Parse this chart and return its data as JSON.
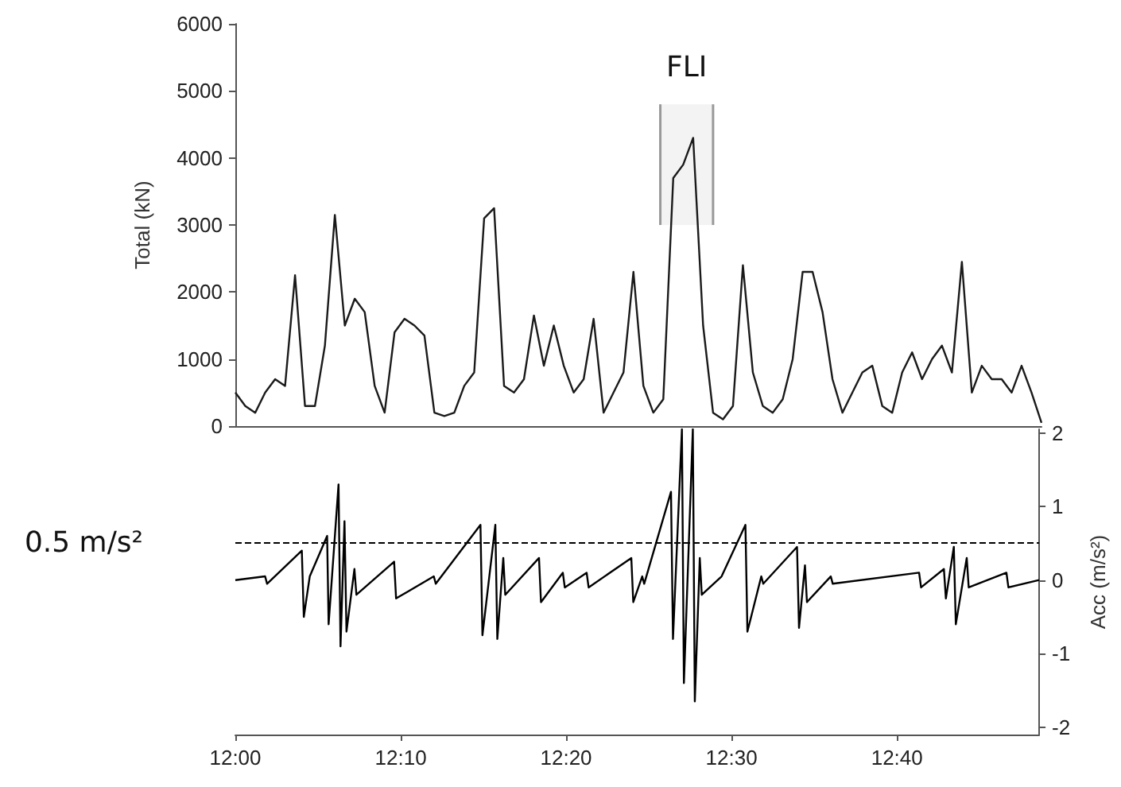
{
  "chart_data": [
    {
      "type": "line",
      "ylabel": "Total (kN)",
      "x": [
        12,
        12.01,
        12.02,
        12.03,
        12.04,
        12.05,
        12.06,
        12.07,
        12.08,
        12.09,
        12.1,
        12.11,
        12.12,
        12.13,
        12.14,
        12.15,
        12.16,
        12.17,
        12.18,
        12.19,
        12.2,
        12.21,
        12.22,
        12.23,
        12.24,
        12.25,
        12.26,
        12.27,
        12.28,
        12.29,
        12.3,
        12.31,
        12.32,
        12.33,
        12.34,
        12.35,
        12.36,
        12.37,
        12.38,
        12.39,
        12.4,
        12.41,
        12.42,
        12.43,
        12.44,
        12.45,
        12.46,
        12.47,
        12.48,
        12.49,
        12.5,
        12.51,
        12.52,
        12.53,
        12.54,
        12.55,
        12.56,
        12.57,
        12.58,
        12.59,
        12.6,
        12.61,
        12.62,
        12.63,
        12.64,
        12.65,
        12.66,
        12.67,
        12.68,
        12.69,
        12.7,
        12.71,
        12.72,
        12.73,
        12.74,
        12.75,
        12.76,
        12.77,
        12.78,
        12.79,
        12.8,
        12.81
      ],
      "series": [
        {
          "color": "#1a1a1a",
          "values": [
            500,
            300,
            200,
            500,
            700,
            600,
            2250,
            300,
            300,
            1200,
            3150,
            1500,
            1900,
            1700,
            600,
            200,
            1400,
            1600,
            1500,
            1350,
            200,
            150,
            200,
            600,
            800,
            3100,
            3250,
            600,
            500,
            700,
            1650,
            900,
            1500,
            900,
            500,
            700,
            1600,
            200,
            500,
            800,
            2300,
            600,
            200,
            400,
            3700,
            3900,
            4300,
            1500,
            200,
            100,
            300,
            2400,
            800,
            300,
            200,
            400,
            1000,
            2300,
            2300,
            1700,
            700,
            200,
            500,
            800,
            900,
            300,
            200,
            800,
            1100,
            700,
            1000,
            1200,
            800,
            2450,
            500,
            900,
            700,
            700,
            500,
            900,
            500,
            50
          ]
        }
      ],
      "xlim": [
        12,
        12.81
      ],
      "ylim": [
        0,
        6000
      ],
      "yticks": [
        0,
        1000,
        2000,
        3000,
        4000,
        5000,
        6000
      ],
      "bands": [
        {
          "axis": "x",
          "from": 12.427,
          "to": 12.48,
          "label": "FLI",
          "color": "#999999"
        }
      ],
      "tick_labels": "y",
      "grid": false,
      "marker": "none",
      "line_style": "solid"
    },
    {
      "type": "line",
      "y2label": "Acc (m/s²)",
      "x": [
        12,
        12.03,
        12.032,
        12.067,
        12.069,
        12.075,
        12.0925,
        12.094,
        12.104,
        12.106,
        12.11,
        12.112,
        12.12,
        12.122,
        12.16,
        12.162,
        12.2,
        12.202,
        12.247,
        12.249,
        12.262,
        12.264,
        12.27,
        12.272,
        12.306,
        12.308,
        12.33,
        12.332,
        12.354,
        12.356,
        12.399,
        12.401,
        12.41,
        12.412,
        12.439,
        12.441,
        12.45,
        12.452,
        12.461,
        12.463,
        12.468,
        12.47,
        12.49,
        12.514,
        12.516,
        12.53,
        12.532,
        12.566,
        12.568,
        12.574,
        12.576,
        12.6,
        12.602,
        12.689,
        12.691,
        12.714,
        12.716,
        12.724,
        12.726,
        12.737,
        12.739,
        12.777,
        12.779,
        12.81
      ],
      "series": [
        {
          "color": "#000000",
          "axis": "y2",
          "values": [
            0,
            0.05,
            -0.05,
            0.4,
            -0.5,
            0.05,
            0.6,
            -0.6,
            1.3,
            -0.9,
            0.8,
            -0.7,
            0.15,
            -0.2,
            0.25,
            -0.25,
            0.05,
            -0.05,
            0.75,
            -0.75,
            0.75,
            -0.8,
            0.3,
            -0.2,
            0.3,
            -0.3,
            0.1,
            -0.1,
            0.1,
            -0.1,
            0.3,
            -0.3,
            0.05,
            -0.05,
            1.2,
            -0.8,
            2.05,
            -1.4,
            2.05,
            -1.65,
            0.3,
            -0.2,
            0.05,
            0.75,
            -0.7,
            0.05,
            -0.05,
            0.45,
            -0.65,
            0.2,
            -0.3,
            0.05,
            -0.05,
            0.1,
            -0.1,
            0.15,
            -0.25,
            0.45,
            -0.6,
            0.3,
            -0.1,
            0.1,
            -0.1,
            0
          ]
        }
      ],
      "xlim": [
        12,
        12.81
      ],
      "xticks": [
        {
          "value": 12,
          "label": "12:00"
        },
        {
          "value": 12.1667,
          "label": "12:10"
        },
        {
          "value": 12.3333,
          "label": "12:20"
        },
        {
          "value": 12.5,
          "label": "12:30"
        },
        {
          "value": 12.6667,
          "label": "12:40"
        }
      ],
      "y2lim": [
        -2.1,
        2.05
      ],
      "y2ticks": [
        -2,
        -1,
        0,
        1,
        2
      ],
      "ref_lines": [
        {
          "axis": "y2",
          "value": 0.5,
          "label": "0.5 m/s²",
          "line_style": "dashed",
          "color": "#000000"
        }
      ],
      "grid": false,
      "marker": "none",
      "line_style": "solid"
    }
  ]
}
